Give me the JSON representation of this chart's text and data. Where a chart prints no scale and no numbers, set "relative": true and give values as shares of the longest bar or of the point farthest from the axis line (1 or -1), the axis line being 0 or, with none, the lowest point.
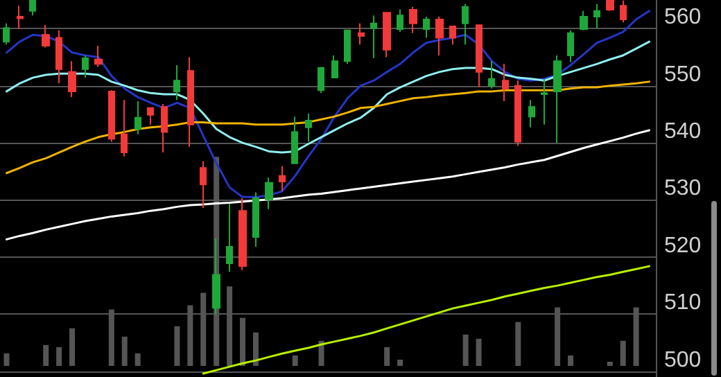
{
  "chart_data": [
    {
      "type": "candlestick",
      "categories": [
        null,
        null,
        null,
        null,
        null,
        null,
        null,
        null,
        null,
        null,
        null,
        null,
        null,
        null,
        null,
        null,
        null,
        null,
        null,
        null,
        null,
        null,
        null,
        null,
        null,
        null,
        null,
        null,
        null,
        null,
        null,
        null,
        null,
        null,
        null,
        null,
        null,
        null,
        null,
        null,
        null,
        null,
        null,
        null,
        null,
        null,
        null,
        null,
        null,
        null
      ],
      "ohlc": [
        [
          557.7,
          560.9,
          557.2,
          560.1
        ],
        [
          562.1,
          564,
          559.9,
          561.8
        ],
        [
          563.1,
          564.9,
          562.3,
          564.9
        ],
        [
          558.9,
          560.6,
          556.7,
          557
        ],
        [
          558.4,
          559.7,
          550.4,
          552.9
        ],
        [
          552.4,
          554.3,
          548,
          549
        ],
        [
          552.9,
          555.3,
          551.4,
          554.8
        ],
        [
          554.6,
          557,
          553.3,
          553.8
        ],
        [
          549,
          549.2,
          540.2,
          540.7
        ],
        [
          541.5,
          547.5,
          537.6,
          538.3
        ],
        [
          542.4,
          547.3,
          541.5,
          544.4
        ],
        [
          546.1,
          546.1,
          543.2,
          544.9
        ],
        [
          546.3,
          546.8,
          538.3,
          541.9
        ],
        [
          549,
          553.6,
          547.5,
          550.9
        ],
        [
          552.6,
          555,
          539.3,
          543.2
        ],
        [
          535.6,
          536.8,
          528.6,
          532.7
        ],
        [
          511.1,
          523.3,
          509.9,
          516.9
        ],
        [
          518.9,
          529.3,
          517.4,
          521.8
        ],
        [
          528.1,
          530.3,
          517.7,
          518.4
        ],
        [
          523.5,
          531.3,
          521.8,
          530.3
        ],
        [
          530.1,
          533.9,
          528.4,
          533
        ],
        [
          534.2,
          535.9,
          531.5,
          533.2
        ],
        [
          536.4,
          544.6,
          536.4,
          541.9
        ],
        [
          542.7,
          545.1,
          540.2,
          543.9
        ],
        [
          549.2,
          553.3,
          548.7,
          553.1
        ],
        [
          551.4,
          555.3,
          551.4,
          554.3
        ],
        [
          554.3,
          559.7,
          553.8,
          559.7
        ],
        [
          559.2,
          560.9,
          557.2,
          558.7
        ],
        [
          560.1,
          562.3,
          554.8,
          560.9
        ],
        [
          562.8,
          562.8,
          555,
          556.3
        ],
        [
          559.9,
          563.3,
          559.4,
          562.3
        ],
        [
          563.3,
          563.8,
          559.2,
          560.9
        ],
        [
          559.9,
          562.1,
          558.4,
          561.6
        ],
        [
          561.6,
          562.1,
          555.3,
          558.4
        ],
        [
          560.4,
          560.4,
          557.2,
          558.4
        ],
        [
          560.9,
          564.3,
          557.2,
          563.8
        ],
        [
          560.6,
          560.6,
          549.7,
          552.4
        ],
        [
          550,
          554.3,
          549.5,
          551.2
        ],
        [
          550.9,
          553.8,
          547.3,
          549.5
        ],
        [
          550,
          550.9,
          539.5,
          540.2
        ],
        [
          544.6,
          547.5,
          542.7,
          546.3
        ],
        [
          548.5,
          551.2,
          543.2,
          548.7
        ],
        [
          549,
          555.3,
          540,
          554.3
        ],
        [
          555.3,
          559.7,
          554.1,
          559.2
        ],
        [
          559.9,
          563.1,
          559.7,
          562.1
        ],
        [
          562.1,
          564.3,
          560.1,
          563.1
        ],
        [
          564.9,
          564.9,
          563.1,
          563.3
        ],
        [
          564,
          564.9,
          561.1,
          561.6
        ],
        null,
        null
      ],
      "colors": [
        "#1fa83a",
        "#f23a3a",
        "#1fa83a",
        "#f23a3a",
        "#f23a3a",
        "#f23a3a",
        "#1fa83a",
        "#f23a3a",
        "#f23a3a",
        "#f23a3a",
        "#1fa83a",
        "#f23a3a",
        "#f23a3a",
        "#1fa83a",
        "#f23a3a",
        "#f23a3a",
        "#1fa83a",
        "#1fa83a",
        "#f23a3a",
        "#1fa83a",
        "#1fa83a",
        "#f23a3a",
        "#1fa83a",
        "#1fa83a",
        "#1fa83a",
        "#1fa83a",
        "#1fa83a",
        "#f23a3a",
        "#1fa83a",
        "#f23a3a",
        "#1fa83a",
        "#f23a3a",
        "#1fa83a",
        "#f23a3a",
        "#f23a3a",
        "#1fa83a",
        "#f23a3a",
        "#1fa83a",
        "#f23a3a",
        "#f23a3a",
        "#1fa83a",
        "#1fa83a",
        "#1fa83a",
        "#1fa83a",
        "#1fa83a",
        "#1fa83a",
        "#f23a3a",
        "#f23a3a",
        null,
        null
      ],
      "series": [
        {
          "type": "line",
          "color": "#2436c8",
          "values": [
            555.8,
            557.7,
            558.9,
            558.7,
            557.7,
            555.8,
            555.3,
            555,
            551.7,
            549.5,
            548,
            547,
            546.1,
            547,
            546.1,
            541.2,
            536.4,
            532.2,
            530.5,
            530.5,
            530.8,
            531.5,
            534.2,
            537.6,
            540.7,
            544.6,
            547.8,
            550,
            550.9,
            552.4,
            553.8,
            555.8,
            557.5,
            558,
            558.4,
            558.9,
            557.2,
            554.3,
            552.4,
            551.2,
            550.9,
            551.2,
            551.9,
            553.6,
            555.5,
            557.5,
            558.4,
            559.4,
            561.6,
            563.1
          ]
        },
        {
          "type": "line",
          "color": "#8ff0f0",
          "values": [
            549,
            550.4,
            551.4,
            551.9,
            552.1,
            552.1,
            552.1,
            551.9,
            550.7,
            550,
            549.2,
            548.7,
            548.5,
            548.5,
            547.5,
            545.1,
            542.4,
            541,
            540,
            539.3,
            538.5,
            538.3,
            538.5,
            539.8,
            541,
            542.2,
            543.4,
            544.4,
            546.1,
            548.5,
            549.7,
            550.7,
            551.7,
            552.4,
            552.9,
            553.1,
            553.1,
            552.9,
            551.9,
            551.4,
            551.2,
            550.9,
            551.7,
            552.4,
            553.1,
            553.8,
            554.6,
            555.3,
            556.5,
            557.7
          ]
        },
        {
          "type": "line",
          "color": "#f0b400",
          "values": [
            534.7,
            535.6,
            536.6,
            537.3,
            538.3,
            539.3,
            540.2,
            541,
            541.5,
            541.9,
            542.4,
            542.7,
            542.9,
            543.2,
            543.6,
            543.6,
            543.4,
            543.4,
            543.4,
            543.2,
            543.2,
            543.2,
            543.4,
            543.6,
            544.1,
            544.6,
            545.3,
            546.1,
            546.3,
            546.8,
            547.3,
            547.8,
            548,
            548.3,
            548.5,
            548.7,
            549,
            549,
            549.2,
            549.2,
            549.2,
            549.2,
            549.2,
            549.5,
            549.7,
            549.7,
            550,
            550.2,
            550.4,
            550.7
          ]
        },
        {
          "type": "line",
          "color": "#ffffff",
          "values": [
            523.1,
            523.7,
            524.2,
            524.8,
            525.3,
            525.8,
            526.3,
            526.7,
            527.1,
            527.4,
            527.7,
            528.1,
            528.4,
            528.8,
            529.1,
            529.2,
            529.4,
            529.5,
            529.7,
            529.9,
            530.1,
            530.3,
            530.6,
            530.9,
            531.1,
            531.4,
            531.7,
            532,
            532.3,
            532.6,
            532.9,
            533.2,
            533.5,
            533.8,
            534.1,
            534.5,
            534.9,
            535.3,
            535.7,
            536.2,
            536.6,
            537,
            537.7,
            538.4,
            539.1,
            539.7,
            540.3,
            540.9,
            541.6,
            542.2
          ]
        },
        {
          "type": "line",
          "color": "#b8f000",
          "values": [
            null,
            null,
            null,
            null,
            null,
            null,
            null,
            null,
            null,
            null,
            null,
            null,
            null,
            null,
            null,
            499.6,
            500.2,
            500.8,
            501.4,
            501.9,
            502.5,
            503.1,
            503.6,
            504.1,
            504.7,
            505.2,
            505.7,
            506.2,
            506.8,
            507.5,
            508.2,
            508.9,
            509.6,
            510.3,
            511,
            511.5,
            512,
            512.5,
            513.1,
            513.6,
            514.1,
            514.6,
            515,
            515.5,
            516,
            516.5,
            516.9,
            517.4,
            517.9,
            518.4
          ]
        }
      ],
      "ylim": [
        499,
        565
      ],
      "yticks": [
        500,
        510,
        520,
        530,
        540,
        550,
        560
      ],
      "grid": "y",
      "tick_labels": "y",
      "marker": "none",
      "line_style": "solid"
    },
    {
      "type": "bar",
      "relative": true,
      "color": "#555555",
      "categories": [
        null,
        null,
        null,
        null,
        null,
        null,
        null,
        null,
        null,
        null,
        null,
        null,
        null,
        null,
        null,
        null,
        null,
        null,
        null,
        null,
        null,
        null,
        null,
        null,
        null,
        null,
        null,
        null,
        null,
        null,
        null,
        null,
        null,
        null,
        null,
        null,
        null,
        null,
        null,
        null,
        null,
        null,
        null,
        null,
        null,
        null,
        null,
        null,
        null,
        null
      ],
      "values": [
        0.06,
        null,
        null,
        0.1,
        0.09,
        0.18,
        null,
        null,
        0.27,
        0.14,
        0.06,
        null,
        null,
        0.19,
        0.29,
        0.35,
        1,
        0.38,
        0.23,
        0.16,
        null,
        null,
        0.05,
        null,
        0.12,
        null,
        null,
        null,
        null,
        0.09,
        0.03,
        null,
        null,
        null,
        null,
        0.15,
        0.13,
        null,
        null,
        0.21,
        null,
        null,
        0.28,
        0.05,
        null,
        null,
        0.02,
        0.12,
        0.28,
        null
      ]
    }
  ]
}
